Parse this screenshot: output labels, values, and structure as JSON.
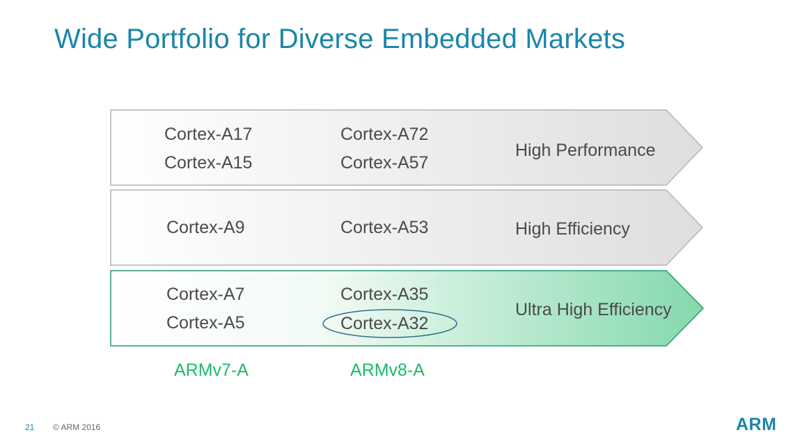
{
  "title": "Wide Portfolio for Diverse Embedded Markets",
  "rows": [
    {
      "armv7": [
        "Cortex-A17",
        "Cortex-A15"
      ],
      "armv8": [
        "Cortex-A72",
        "Cortex-A57"
      ],
      "label": "High Performance"
    },
    {
      "armv7": [
        "Cortex-A9"
      ],
      "armv8": [
        "Cortex-A53"
      ],
      "label": "High Efficiency"
    },
    {
      "armv7": [
        "Cortex-A7",
        "Cortex-A5"
      ],
      "armv8": [
        "Cortex-A35",
        "Cortex-A32"
      ],
      "label": "Ultra High Efficiency",
      "highlighted": "Cortex-A32"
    }
  ],
  "architectures": [
    "ARMv7-A",
    "ARMv8-A"
  ],
  "footer": {
    "page_number": "21",
    "copyright": "© ARM 2016",
    "logo": "ARM"
  },
  "colors": {
    "title": "#1a86a8",
    "arch_label": "#1fb86a",
    "gray_arrow": "#e2e2e2",
    "green_arrow": "#8fdcb3",
    "green_outline": "#1f9d66"
  }
}
